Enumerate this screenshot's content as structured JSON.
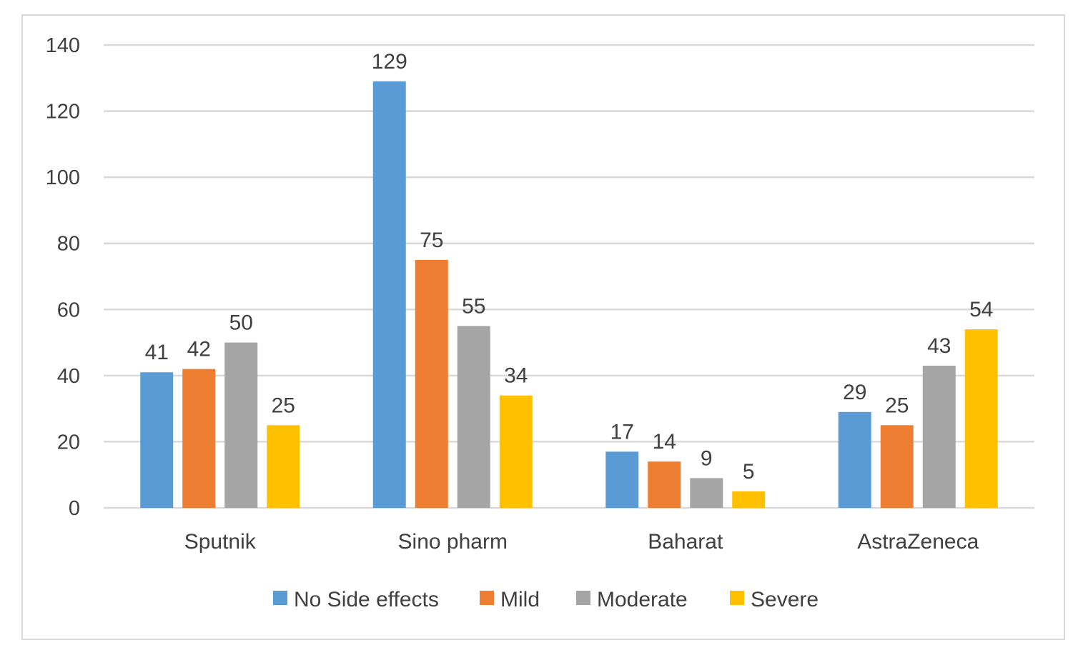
{
  "chart_data": {
    "type": "bar",
    "categories": [
      "Sputnik",
      "Sino pharm",
      "Baharat",
      "AstraZeneca"
    ],
    "series": [
      {
        "name": "No Side effects",
        "color": "#5b9bd5",
        "values": [
          41,
          129,
          17,
          29
        ]
      },
      {
        "name": "Mild",
        "color": "#ed7d31",
        "values": [
          42,
          75,
          14,
          25
        ]
      },
      {
        "name": "Moderate",
        "color": "#a5a5a5",
        "values": [
          50,
          55,
          9,
          43
        ]
      },
      {
        "name": "Severe",
        "color": "#ffc000",
        "values": [
          25,
          34,
          5,
          54
        ]
      }
    ],
    "yticks": [
      0,
      20,
      40,
      60,
      80,
      100,
      120,
      140
    ],
    "ylim": [
      0,
      140
    ],
    "grid": true,
    "legend": "bottom",
    "data_labels": true
  }
}
